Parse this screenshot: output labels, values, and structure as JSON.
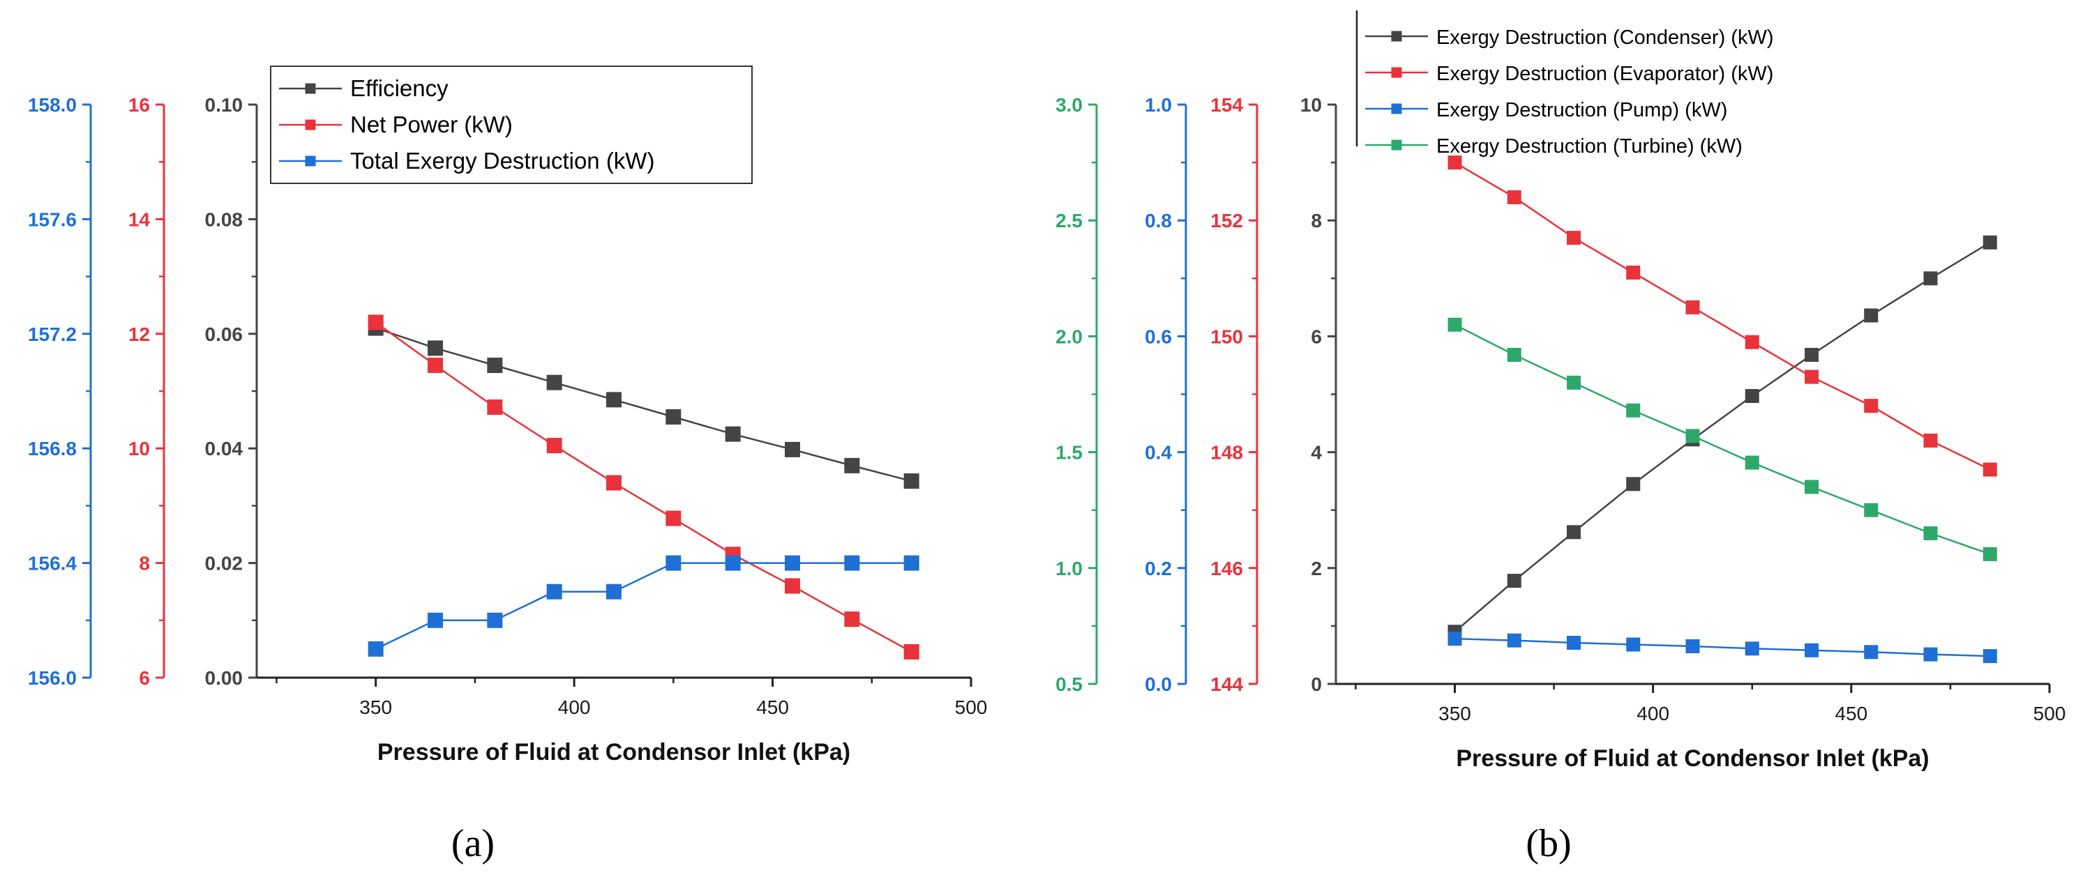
{
  "chart_data": [
    {
      "panel": "a",
      "caption": "(a)",
      "type": "line",
      "xlabel": "Pressure of Fluid at Condensor Inlet (kPa)",
      "xlim": [
        320,
        500
      ],
      "xticks": [
        350,
        400,
        450,
        500
      ],
      "x": [
        350,
        365,
        380,
        395,
        410,
        425,
        440,
        455,
        470,
        485
      ],
      "legend_position": "top-center",
      "axes": [
        {
          "id": "eff",
          "color": "#444444",
          "range": [
            0,
            0.1
          ],
          "ticks": [
            "0.00",
            "0.02",
            "0.04",
            "0.06",
            "0.08",
            "0.10"
          ]
        },
        {
          "id": "power",
          "color": "#e8333b",
          "range": [
            6,
            16
          ],
          "ticks": [
            "6",
            "8",
            "10",
            "12",
            "14",
            "16"
          ]
        },
        {
          "id": "exd",
          "color": "#1f6fd6",
          "range": [
            156.0,
            158.0
          ],
          "ticks": [
            "156.0",
            "156.4",
            "156.8",
            "157.2",
            "157.6",
            "158.0"
          ]
        }
      ],
      "series": [
        {
          "name": "Efficiency",
          "axis": "eff",
          "color": "#444444",
          "values": [
            0.061,
            0.0575,
            0.0545,
            0.0515,
            0.0485,
            0.0455,
            0.0425,
            0.0398,
            0.037,
            0.0343
          ]
        },
        {
          "name": "Net Power (kW)",
          "axis": "power",
          "color": "#e8333b",
          "values": [
            12.2,
            11.45,
            10.72,
            10.05,
            9.4,
            8.78,
            8.15,
            7.6,
            7.02,
            6.45
          ]
        },
        {
          "name": "Total Exergy Destruction (kW)",
          "axis": "exd",
          "color": "#1f6fd6",
          "values": [
            156.1,
            156.2,
            156.2,
            156.3,
            156.3,
            156.4,
            156.4,
            156.4,
            156.4,
            156.4
          ]
        }
      ]
    },
    {
      "panel": "b",
      "caption": "(b)",
      "type": "line",
      "xlabel": "Pressure of Fluid at Condensor Inlet (kPa)",
      "xlim": [
        320,
        500
      ],
      "xticks": [
        350,
        400,
        450,
        500
      ],
      "x": [
        350,
        365,
        380,
        395,
        410,
        425,
        440,
        455,
        470,
        485
      ],
      "legend_position": "top-left",
      "axes": [
        {
          "id": "cond",
          "color": "#444444",
          "range": [
            0,
            10
          ],
          "ticks": [
            "0",
            "2",
            "4",
            "6",
            "8",
            "10"
          ]
        },
        {
          "id": "evap",
          "color": "#e8333b",
          "range": [
            144,
            154
          ],
          "ticks": [
            "144",
            "146",
            "148",
            "150",
            "152",
            "154"
          ]
        },
        {
          "id": "pump",
          "color": "#1f6fd6",
          "range": [
            0,
            1
          ],
          "ticks": [
            "0.0",
            "0.2",
            "0.4",
            "0.6",
            "0.8",
            "1.0"
          ]
        },
        {
          "id": "turb",
          "color": "#2ea86a",
          "range": [
            0.5,
            3.0
          ],
          "ticks": [
            "0.5",
            "1.0",
            "1.5",
            "2.0",
            "2.5",
            "3.0"
          ]
        }
      ],
      "series": [
        {
          "name": "Exergy Destruction (Condenser) (kW)",
          "axis": "cond",
          "color": "#444444",
          "values": [
            0.9,
            1.78,
            2.62,
            3.45,
            4.22,
            4.97,
            5.68,
            6.36,
            7.0,
            7.62
          ]
        },
        {
          "name": "Exergy Destruction (Evaporator) (kW)",
          "axis": "evap",
          "color": "#e8333b",
          "values": [
            153.0,
            152.4,
            151.7,
            151.1,
            150.5,
            149.9,
            149.3,
            148.8,
            148.2,
            147.7
          ]
        },
        {
          "name": "Exergy Destruction (Pump) (kW)",
          "axis": "pump",
          "color": "#1f6fd6",
          "values": [
            0.078,
            0.075,
            0.071,
            0.068,
            0.065,
            0.061,
            0.058,
            0.055,
            0.051,
            0.048
          ]
        },
        {
          "name": "Exergy Destruction (Turbine) (kW)",
          "axis": "turb",
          "color": "#2ea86a",
          "values": [
            2.05,
            1.92,
            1.8,
            1.68,
            1.57,
            1.455,
            1.35,
            1.25,
            1.15,
            1.06
          ]
        }
      ]
    }
  ]
}
